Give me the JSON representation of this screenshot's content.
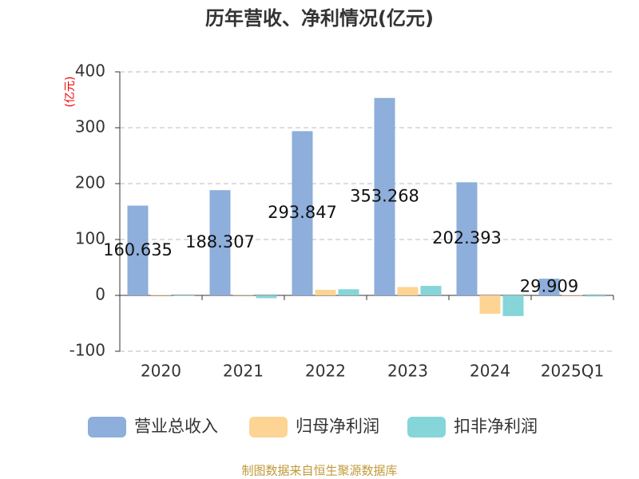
{
  "chart_data": {
    "type": "bar",
    "title": "历年营收、净利情况(亿元)",
    "y_label": "(亿元)",
    "categories": [
      "2020",
      "2021",
      "2022",
      "2023",
      "2024",
      "2025Q1"
    ],
    "series": [
      {
        "name": "营业总收入",
        "color": "#8eaedb",
        "values": [
          160.635,
          188.307,
          293.847,
          353.268,
          202.393,
          29.909
        ]
      },
      {
        "name": "归母净利润",
        "color": "#fdd493",
        "values": [
          1,
          0.5,
          10,
          15,
          -33,
          1
        ]
      },
      {
        "name": "扣非净利润",
        "color": "#86d5d8",
        "values": [
          -1,
          -5,
          11,
          17,
          -37,
          -2
        ]
      }
    ],
    "ylim": [
      -100,
      400
    ],
    "yticks": [
      -100,
      0,
      100,
      200,
      300,
      400
    ],
    "grid": true,
    "source": "制图数据来自恒生聚源数据库"
  }
}
